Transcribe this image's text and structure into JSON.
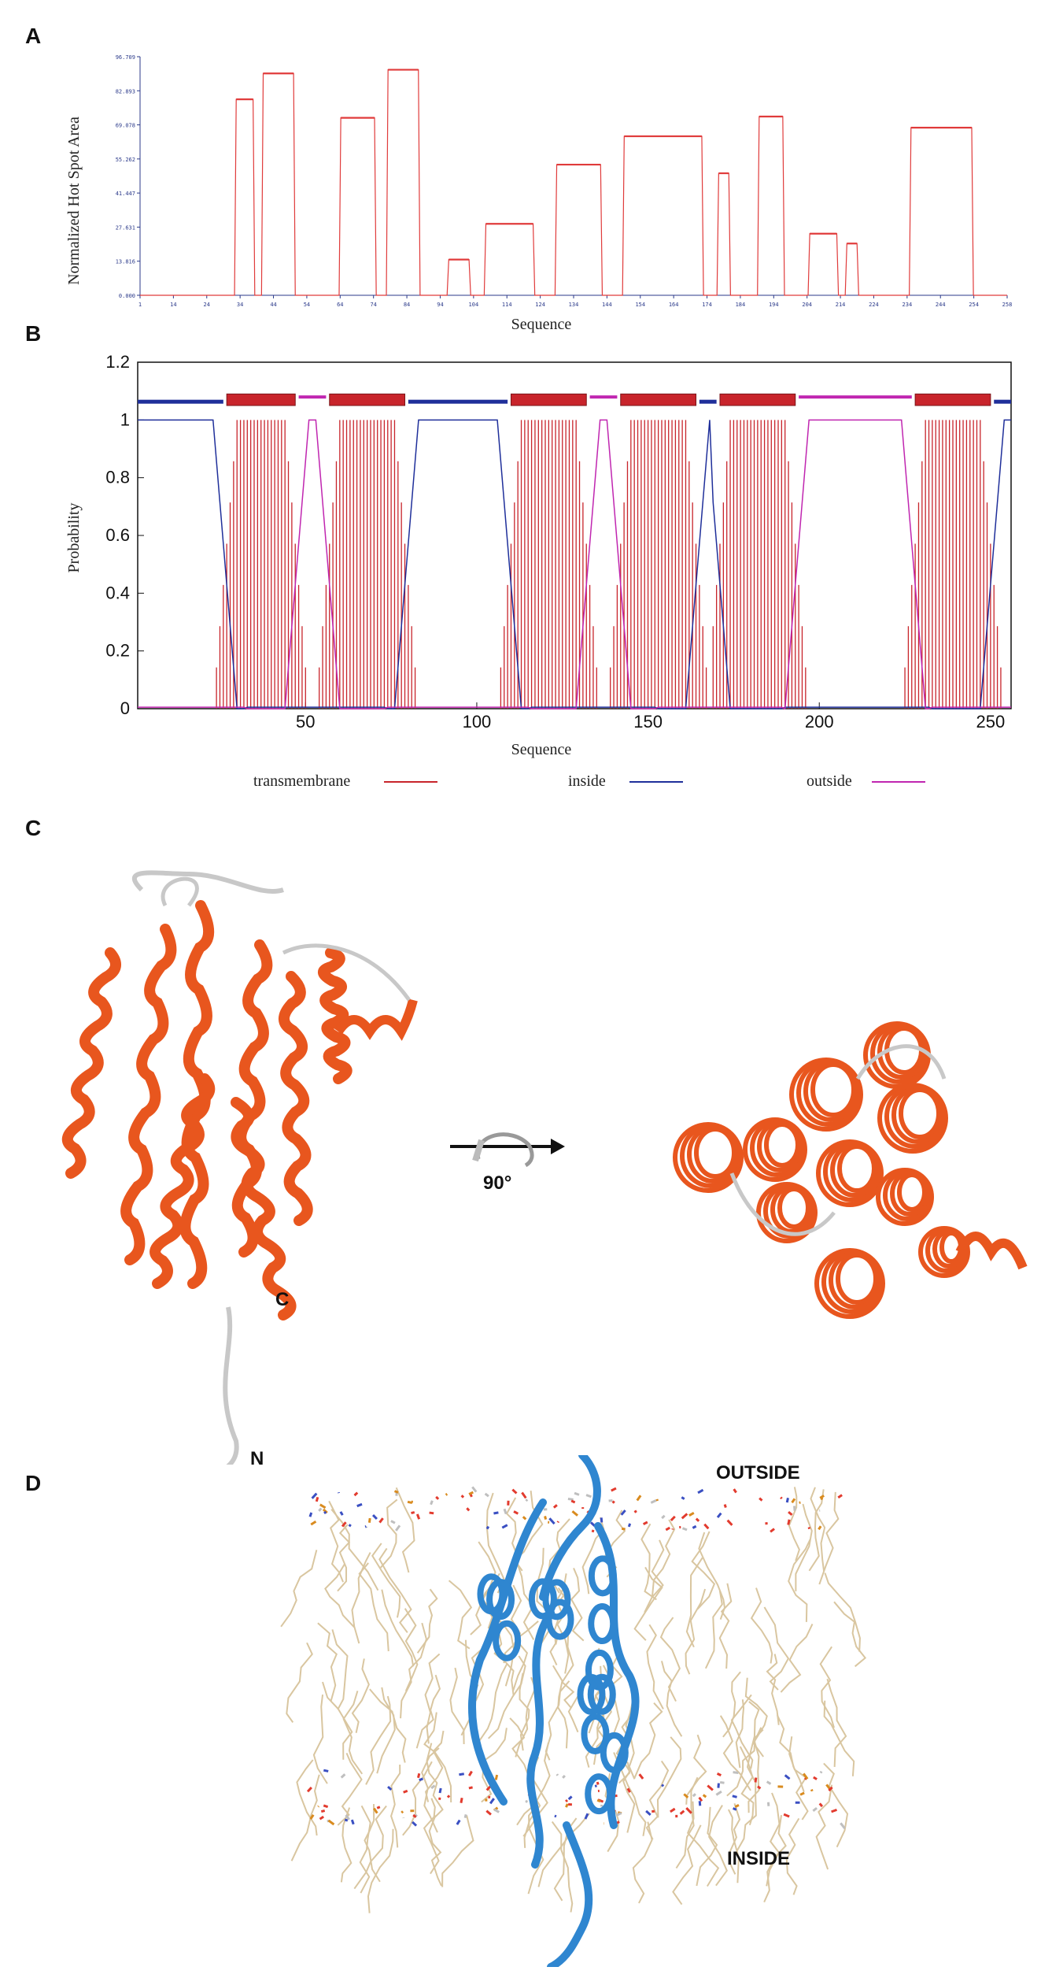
{
  "panels": {
    "a": "A",
    "b": "B",
    "c": "C",
    "d": "D"
  },
  "chart_data": [
    {
      "type": "line",
      "panel": "A",
      "xlabel": "Sequence",
      "ylabel": "Normalized Hot Spot Area",
      "ylim": [
        0,
        96.789
      ],
      "yticks": [
        "0.000",
        "13.816",
        "27.631",
        "41.447",
        "55.262",
        "69.078",
        "82.893",
        "96.709"
      ],
      "xticks": [
        "1",
        "14",
        "24",
        "34",
        "44",
        "54",
        "64",
        "74",
        "84",
        "94",
        "104",
        "114",
        "124",
        "134",
        "144",
        "154",
        "164",
        "174",
        "184",
        "194",
        "204",
        "214",
        "224",
        "234",
        "244",
        "254",
        "258"
      ],
      "color": "#e03b3b",
      "segments": [
        {
          "start": 29,
          "end": 35,
          "value": 79.5
        },
        {
          "start": 37,
          "end": 47,
          "value": 90.0
        },
        {
          "start": 60,
          "end": 71,
          "value": 72.0
        },
        {
          "start": 74,
          "end": 84,
          "value": 91.5
        },
        {
          "start": 92,
          "end": 99,
          "value": 14.5
        },
        {
          "start": 103,
          "end": 118,
          "value": 29.0
        },
        {
          "start": 124,
          "end": 138,
          "value": 53.0
        },
        {
          "start": 144,
          "end": 168,
          "value": 64.5
        },
        {
          "start": 172,
          "end": 176,
          "value": 49.5
        },
        {
          "start": 184,
          "end": 192,
          "value": 72.5
        },
        {
          "start": 199,
          "end": 208,
          "value": 25.0
        },
        {
          "start": 210,
          "end": 214,
          "value": 21.0
        },
        {
          "start": 229,
          "end": 248,
          "value": 68.0
        }
      ],
      "xlim": [
        1,
        258
      ]
    },
    {
      "type": "line",
      "panel": "B",
      "xlabel": "Sequence",
      "ylabel": "Probability",
      "ylim": [
        0,
        1.2
      ],
      "xlim": [
        1,
        256
      ],
      "yticks": [
        "0",
        "0.2",
        "0.4",
        "0.6",
        "0.8",
        "1",
        "1.2"
      ],
      "xticks": [
        "50",
        "100",
        "150",
        "200",
        "250"
      ],
      "series": [
        {
          "name": "transmembrane",
          "color": "#c8242b"
        },
        {
          "name": "inside",
          "color": "#1f2f9a"
        },
        {
          "name": "outside",
          "color": "#c026b0"
        }
      ],
      "topology": [
        {
          "region": "inside",
          "start": 1,
          "end": 26
        },
        {
          "region": "transmembrane",
          "start": 27,
          "end": 47
        },
        {
          "region": "outside",
          "start": 48,
          "end": 56
        },
        {
          "region": "transmembrane",
          "start": 57,
          "end": 79
        },
        {
          "region": "inside",
          "start": 80,
          "end": 109
        },
        {
          "region": "transmembrane",
          "start": 110,
          "end": 132
        },
        {
          "region": "outside",
          "start": 133,
          "end": 141
        },
        {
          "region": "transmembrane",
          "start": 142,
          "end": 164
        },
        {
          "region": "inside",
          "start": 165,
          "end": 170
        },
        {
          "region": "transmembrane",
          "start": 171,
          "end": 193
        },
        {
          "region": "outside",
          "start": 194,
          "end": 227
        },
        {
          "region": "transmembrane",
          "start": 228,
          "end": 250
        },
        {
          "region": "inside",
          "start": 251,
          "end": 256
        }
      ]
    }
  ],
  "structure_c": {
    "label_c": "C",
    "label_n": "N",
    "rotation": "90°"
  },
  "structure_d": {
    "outside": "OUTSIDE",
    "inside": "INSIDE"
  },
  "colors": {
    "helix": "#e8561e",
    "loop": "#c8c8c8",
    "protein_d": "#2f86d0",
    "lipid": "#d9c6a0"
  }
}
